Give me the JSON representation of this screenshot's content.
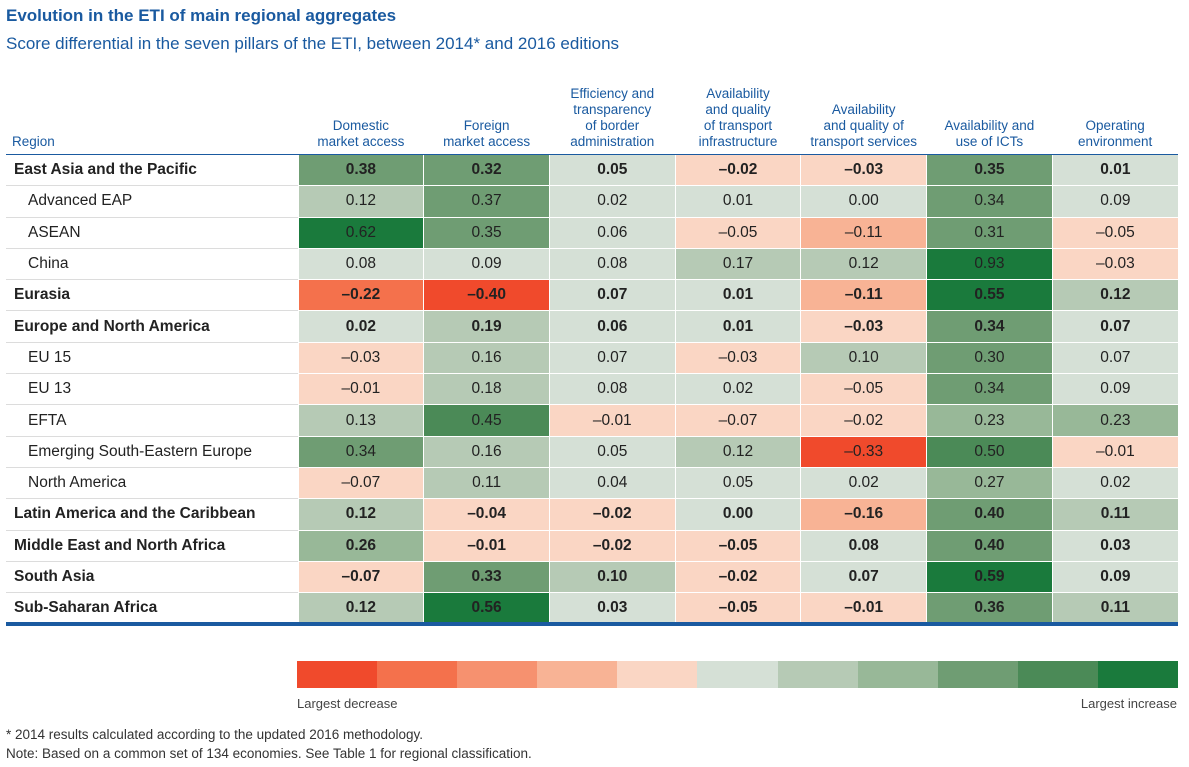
{
  "title": "Evolution in the ETI of main regional aggregates",
  "subtitle": "Score differential in the seven pillars of the ETI, between 2014* and 2016 editions",
  "chart_data": {
    "type": "heatmap",
    "title": "Evolution in the ETI of main regional aggregates",
    "subtitle": "Score differential in the seven pillars of the ETI, between 2014* and 2016 editions",
    "row_header": "Region",
    "columns": [
      "Domestic market access",
      "Foreign market access",
      "Efficiency and transparency of border administration",
      "Availability and quality of transport infrastructure",
      "Availability and quality of transport services",
      "Availability and use of ICTs",
      "Operating environment"
    ],
    "rows": [
      {
        "region": "East Asia and the Pacific",
        "aggregate": true,
        "values": [
          0.38,
          0.32,
          0.05,
          -0.02,
          -0.03,
          0.35,
          0.01
        ],
        "labels": [
          "0.38",
          "0.32",
          "0.05",
          "–0.02",
          "–0.03",
          "0.35",
          "0.01"
        ]
      },
      {
        "region": "Advanced EAP",
        "aggregate": false,
        "values": [
          0.12,
          0.37,
          0.02,
          0.01,
          0.0,
          0.34,
          0.09
        ],
        "labels": [
          "0.12",
          "0.37",
          "0.02",
          "0.01",
          "0.00",
          "0.34",
          "0.09"
        ]
      },
      {
        "region": "ASEAN",
        "aggregate": false,
        "values": [
          0.62,
          0.35,
          0.06,
          -0.05,
          -0.11,
          0.31,
          -0.05
        ],
        "labels": [
          "0.62",
          "0.35",
          "0.06",
          "–0.05",
          "–0.11",
          "0.31",
          "–0.05"
        ]
      },
      {
        "region": "China",
        "aggregate": false,
        "values": [
          0.08,
          0.09,
          0.08,
          0.17,
          0.12,
          0.93,
          -0.03
        ],
        "labels": [
          "0.08",
          "0.09",
          "0.08",
          "0.17",
          "0.12",
          "0.93",
          "–0.03"
        ]
      },
      {
        "region": "Eurasia",
        "aggregate": true,
        "values": [
          -0.22,
          -0.4,
          0.07,
          0.01,
          -0.11,
          0.55,
          0.12
        ],
        "labels": [
          "–0.22",
          "–0.40",
          "0.07",
          "0.01",
          "–0.11",
          "0.55",
          "0.12"
        ]
      },
      {
        "region": "Europe and North America",
        "aggregate": true,
        "values": [
          0.02,
          0.19,
          0.06,
          0.01,
          -0.03,
          0.34,
          0.07
        ],
        "labels": [
          "0.02",
          "0.19",
          "0.06",
          "0.01",
          "–0.03",
          "0.34",
          "0.07"
        ]
      },
      {
        "region": "EU 15",
        "aggregate": false,
        "values": [
          -0.03,
          0.16,
          0.07,
          -0.03,
          0.1,
          0.3,
          0.07
        ],
        "labels": [
          "–0.03",
          "0.16",
          "0.07",
          "–0.03",
          "0.10",
          "0.30",
          "0.07"
        ]
      },
      {
        "region": "EU 13",
        "aggregate": false,
        "values": [
          -0.01,
          0.18,
          0.08,
          0.02,
          -0.05,
          0.34,
          0.09
        ],
        "labels": [
          "–0.01",
          "0.18",
          "0.08",
          "0.02",
          "–0.05",
          "0.34",
          "0.09"
        ]
      },
      {
        "region": "EFTA",
        "aggregate": false,
        "values": [
          0.13,
          0.45,
          -0.01,
          -0.07,
          -0.02,
          0.23,
          0.23
        ],
        "labels": [
          "0.13",
          "0.45",
          "–0.01",
          "–0.07",
          "–0.02",
          "0.23",
          "0.23"
        ]
      },
      {
        "region": "Emerging South-Eastern Europe",
        "aggregate": false,
        "values": [
          0.34,
          0.16,
          0.05,
          0.12,
          -0.33,
          0.5,
          -0.01
        ],
        "labels": [
          "0.34",
          "0.16",
          "0.05",
          "0.12",
          "–0.33",
          "0.50",
          "–0.01"
        ]
      },
      {
        "region": "North America",
        "aggregate": false,
        "values": [
          -0.07,
          0.11,
          0.04,
          0.05,
          0.02,
          0.27,
          0.02
        ],
        "labels": [
          "–0.07",
          "0.11",
          "0.04",
          "0.05",
          "0.02",
          "0.27",
          "0.02"
        ]
      },
      {
        "region": "Latin America and the Caribbean",
        "aggregate": true,
        "values": [
          0.12,
          -0.04,
          -0.02,
          0.0,
          -0.16,
          0.4,
          0.11
        ],
        "labels": [
          "0.12",
          "–0.04",
          "–0.02",
          "0.00",
          "–0.16",
          "0.40",
          "0.11"
        ]
      },
      {
        "region": "Middle East and North Africa",
        "aggregate": true,
        "values": [
          0.26,
          -0.01,
          -0.02,
          -0.05,
          0.08,
          0.4,
          0.03
        ],
        "labels": [
          "0.26",
          "–0.01",
          "–0.02",
          "–0.05",
          "0.08",
          "0.40",
          "0.03"
        ]
      },
      {
        "region": "South Asia",
        "aggregate": true,
        "values": [
          -0.07,
          0.33,
          0.1,
          -0.02,
          0.07,
          0.59,
          0.09
        ],
        "labels": [
          "–0.07",
          "0.33",
          "0.10",
          "–0.02",
          "0.07",
          "0.59",
          "0.09"
        ]
      },
      {
        "region": "Sub-Saharan Africa",
        "aggregate": true,
        "values": [
          0.12,
          0.56,
          0.03,
          -0.05,
          -0.01,
          0.36,
          0.11
        ],
        "labels": [
          "0.12",
          "0.56",
          "0.03",
          "–0.05",
          "–0.01",
          "0.36",
          "0.11"
        ]
      }
    ],
    "legend": {
      "low_label": "Largest decrease",
      "high_label": "Largest increase",
      "colors": [
        "#f04a2c",
        "#f4714c",
        "#f6916f",
        "#f8b395",
        "#fad6c4",
        "#d5e0d6",
        "#b6cab5",
        "#98b898",
        "#6f9d73",
        "#4b8a57",
        "#1a7a3c"
      ]
    }
  },
  "footnotes": [
    "* 2014 results calculated according to the updated 2016 methodology.",
    "Note: Based on a common set of 134 economies. See Table 1 for regional classification."
  ]
}
